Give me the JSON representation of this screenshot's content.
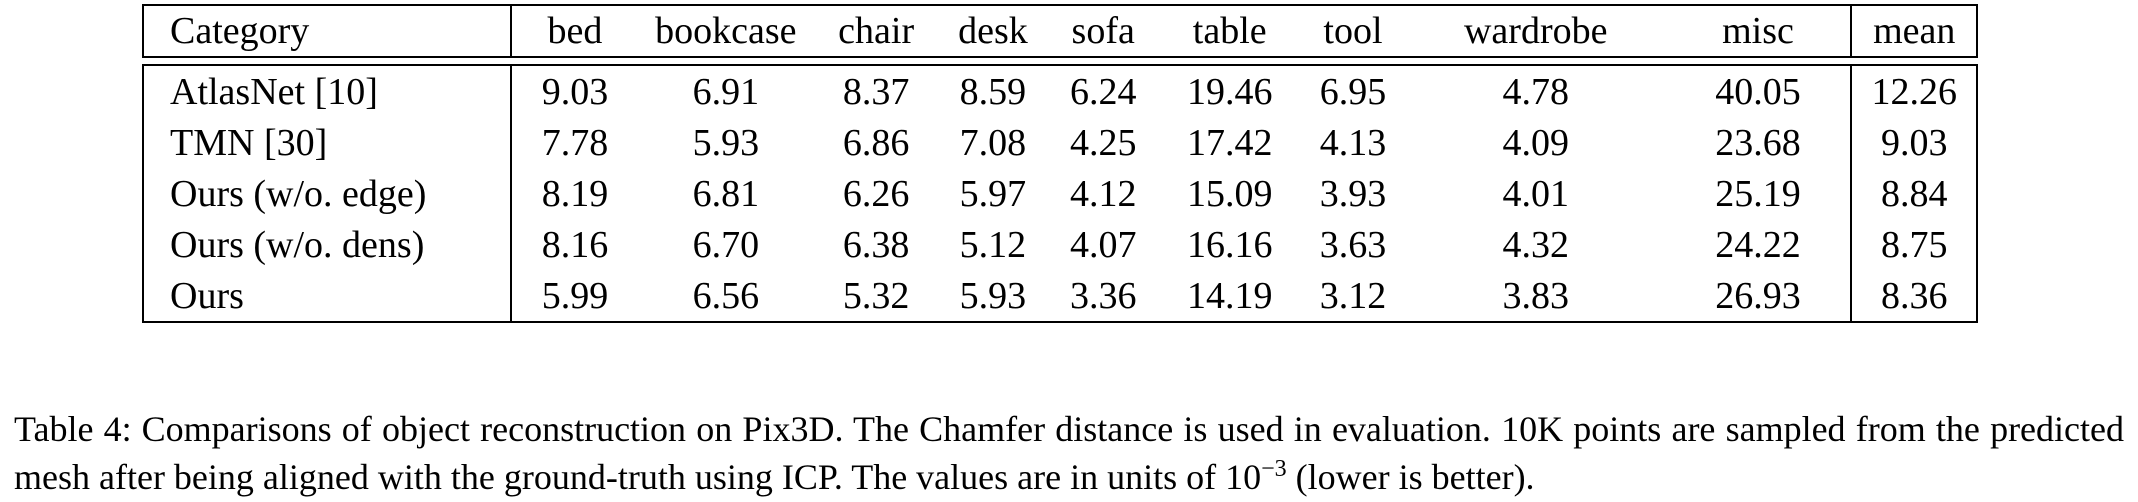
{
  "table": {
    "headers": [
      "Category",
      "bed",
      "bookcase",
      "chair",
      "desk",
      "sofa",
      "table",
      "tool",
      "wardrobe",
      "misc",
      "mean"
    ],
    "rows": [
      {
        "method": "AtlasNet [10]",
        "values": [
          "9.03",
          "6.91",
          "8.37",
          "8.59",
          "6.24",
          "19.46",
          "6.95",
          "4.78",
          "40.05",
          "12.26"
        ],
        "bold": [
          false,
          false,
          false,
          false,
          false,
          false,
          false,
          false,
          false,
          false
        ]
      },
      {
        "method": "TMN [30]",
        "values": [
          "7.78",
          "5.93",
          "6.86",
          "7.08",
          "4.25",
          "17.42",
          "4.13",
          "4.09",
          "23.68",
          "9.03"
        ],
        "bold": [
          false,
          true,
          false,
          false,
          false,
          false,
          false,
          false,
          true,
          false
        ]
      },
      {
        "method": "Ours (w/o. edge)",
        "values": [
          "8.19",
          "6.81",
          "6.26",
          "5.97",
          "4.12",
          "15.09",
          "3.93",
          "4.01",
          "25.19",
          "8.84"
        ],
        "bold": [
          false,
          false,
          false,
          false,
          false,
          false,
          false,
          false,
          false,
          false
        ]
      },
      {
        "method": "Ours (w/o. dens)",
        "values": [
          "8.16",
          "6.70",
          "6.38",
          "5.12",
          "4.07",
          "16.16",
          "3.63",
          "4.32",
          "24.22",
          "8.75"
        ],
        "bold": [
          false,
          false,
          false,
          true,
          false,
          false,
          false,
          false,
          false,
          false
        ]
      },
      {
        "method": "Ours",
        "values": [
          "5.99",
          "6.56",
          "5.32",
          "5.93",
          "3.36",
          "14.19",
          "3.12",
          "3.83",
          "26.93",
          "8.36"
        ],
        "bold": [
          true,
          false,
          true,
          false,
          true,
          true,
          true,
          true,
          false,
          true
        ]
      }
    ]
  },
  "caption": {
    "label": "Table 4:",
    "text_before": "Comparisons of object reconstruction on Pix3D. The Chamfer distance is used in evaluation. 10K points are sampled from the predicted mesh after being aligned with the ground-truth using ICP. The values are in units of 10",
    "exponent": "−3",
    "text_after": " (lower is better)."
  }
}
